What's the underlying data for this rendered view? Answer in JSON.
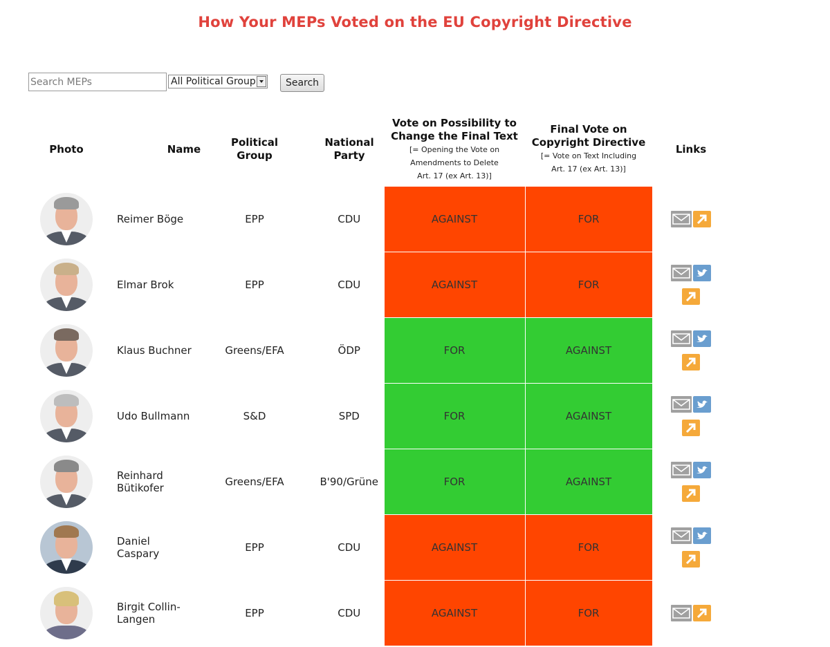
{
  "page": {
    "title": "How Your MEPs Voted on the EU Copyright Directive"
  },
  "search": {
    "placeholder": "Search MEPs",
    "value": "",
    "group_selected": "All Political Group",
    "button_label": "Search"
  },
  "table": {
    "headers": {
      "photo": "Photo",
      "name": "Name",
      "group_line1": "Political",
      "group_line2": "Group",
      "party_line1": "National",
      "party_line2": "Party",
      "vote1_line1": "Vote on Possibility to",
      "vote1_line2": "Change the Final Text",
      "vote1_sub1": "[= Opening the Vote on",
      "vote1_sub2": "Amendments to Delete",
      "vote1_sub3": "Art. 17 (ex Art. 13)]",
      "vote2_line1": "Final Vote on",
      "vote2_line2": "Copyright Directive",
      "vote2_sub1": "[= Vote on Text Including",
      "vote2_sub2": "Art. 17 (ex Art. 13)]",
      "links": "Links"
    },
    "rows": [
      {
        "name": "Reimer Böge",
        "group": "EPP",
        "party": "CDU",
        "vote1": "AGAINST",
        "vote2": "FOR",
        "has_twitter": false
      },
      {
        "name": "Elmar Brok",
        "group": "EPP",
        "party": "CDU",
        "vote1": "AGAINST",
        "vote2": "FOR",
        "has_twitter": true
      },
      {
        "name": "Klaus Buchner",
        "group": "Greens/EFA",
        "party": "ÖDP",
        "vote1": "FOR",
        "vote2": "AGAINST",
        "has_twitter": true
      },
      {
        "name": "Udo Bullmann",
        "group": "S&D",
        "party": "SPD",
        "vote1": "FOR",
        "vote2": "AGAINST",
        "has_twitter": true
      },
      {
        "name": "Reinhard Bütikofer",
        "group": "Greens/EFA",
        "party": "B'90/Grüne",
        "vote1": "FOR",
        "vote2": "AGAINST",
        "has_twitter": true
      },
      {
        "name": "Daniel Caspary",
        "group": "EPP",
        "party": "CDU",
        "vote1": "AGAINST",
        "vote2": "FOR",
        "has_twitter": true
      },
      {
        "name": "Birgit Collin-Langen",
        "group": "EPP",
        "party": "CDU",
        "vote1": "AGAINST",
        "vote2": "FOR",
        "has_twitter": false
      }
    ]
  },
  "colors": {
    "title": "#e0423c",
    "vote_for": "#33cc33",
    "vote_against": "#ff4500",
    "mail_icon": "#a0a0a0",
    "twitter_icon": "#6a9ecf",
    "link_icon": "#f5a93a"
  },
  "icons": {
    "mail": "envelope-icon",
    "twitter": "twitter-bird-icon",
    "link": "external-link-arrow-icon"
  }
}
